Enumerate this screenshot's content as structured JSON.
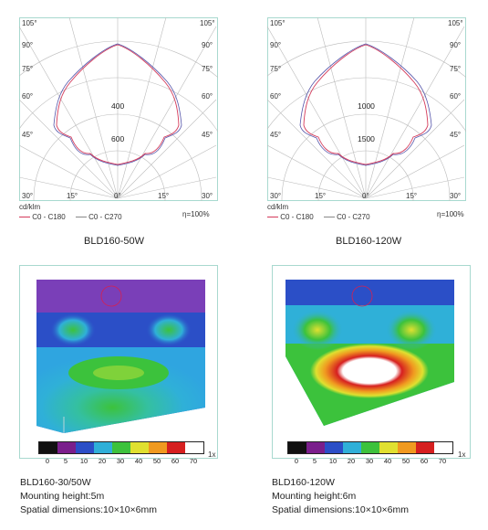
{
  "polar_left": {
    "unit_label": "cd/klm",
    "efficiency": "η=100%",
    "legend": [
      "C0 - C180",
      "C0 - C270"
    ],
    "angle_labels": [
      "105°",
      "90°",
      "75°",
      "60°",
      "45°",
      "30°",
      "15°",
      "0°"
    ],
    "radial_labels": [
      "400",
      "600"
    ],
    "title": "BLD160-50W"
  },
  "polar_right": {
    "unit_label": "cd/klm",
    "efficiency": "η=100%",
    "legend": [
      "C0 - C180",
      "C0 - C270"
    ],
    "angle_labels": [
      "105°",
      "90°",
      "75°",
      "60°",
      "45°",
      "30°",
      "15°",
      "0°"
    ],
    "radial_labels": [
      "1000",
      "1500"
    ],
    "title": "BLD160-120W"
  },
  "scale": {
    "values": [
      "0",
      "5",
      "10",
      "20",
      "30",
      "40",
      "50",
      "60",
      "70"
    ],
    "unit": "1x",
    "colors": [
      "#111111",
      "#7a1f8c",
      "#2b4fc7",
      "#2fb0d8",
      "#3cc23c",
      "#e0e030",
      "#f09a20",
      "#d62020",
      "#ffffff"
    ]
  },
  "left_info": {
    "model": "BLD160-30/50W",
    "height": "Mounting height:5m",
    "dims": "Spatial dimensions:10×10×6mm"
  },
  "right_info": {
    "model": "BLD160-120W",
    "height": "Mounting height:6m",
    "dims": "Spatial dimensions:10×10×6mm"
  }
}
